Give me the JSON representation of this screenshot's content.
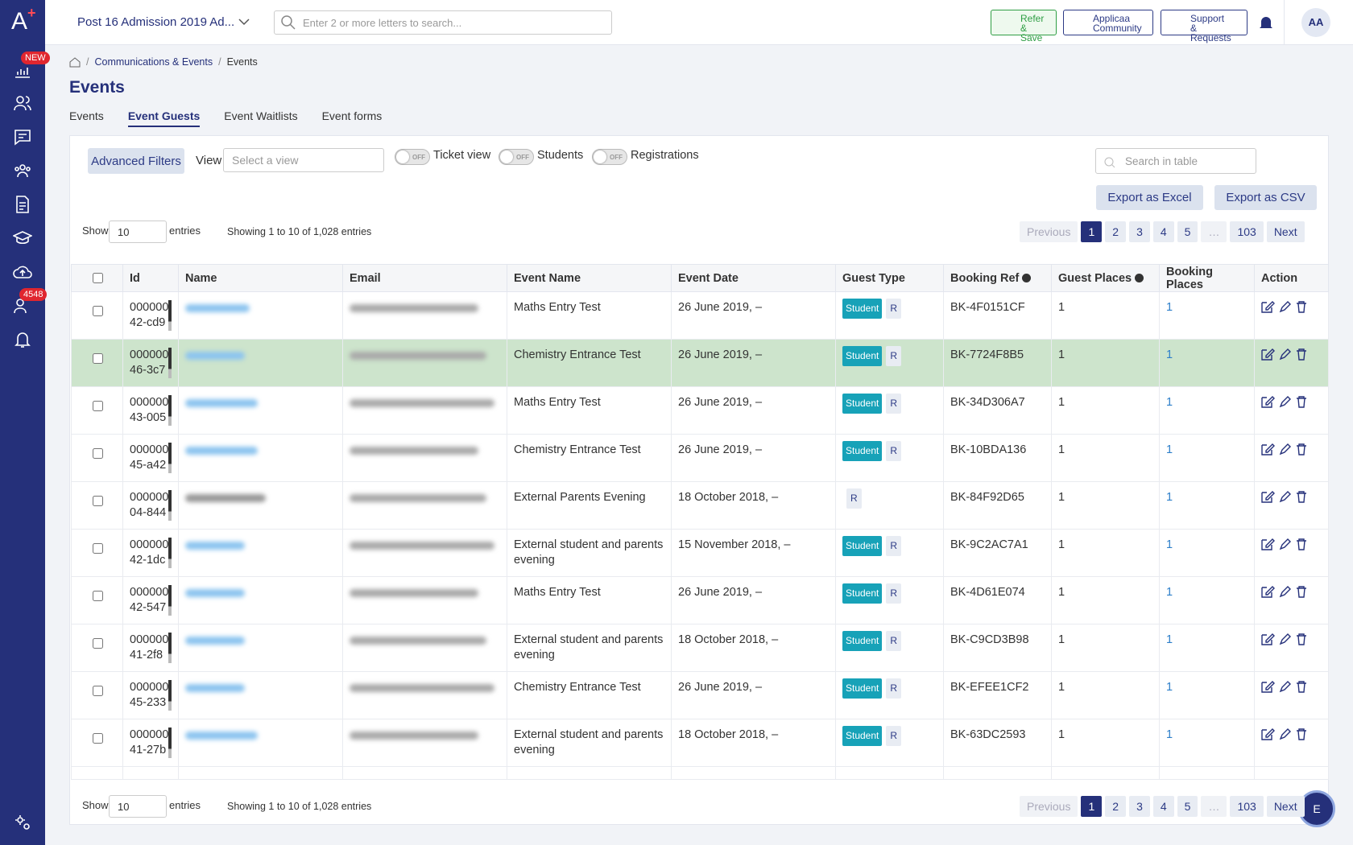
{
  "header": {
    "logo": "A",
    "project": "Post 16 Admission 2019 Ad...",
    "search_placeholder": "Enter 2 or more letters to search...",
    "buttons": [
      [
        "Refer",
        "& Save"
      ],
      [
        "Applicaa",
        "Community"
      ],
      [
        "Support",
        "& Requests"
      ]
    ],
    "avatar": "AA"
  },
  "sidebar": {
    "badges": [
      "NEW",
      "4548"
    ]
  },
  "breadcrumb": [
    "Communications & Events",
    "Events"
  ],
  "title": "Events",
  "tabs": [
    "Events",
    "Event Guests",
    "Event Waitlists",
    "Event forms"
  ],
  "toolbar": {
    "advanced_filters": "Advanced Filters",
    "view_label": "View",
    "view_placeholder": "Select a view",
    "toggles": [
      {
        "state": "OFF",
        "label": "Ticket view"
      },
      {
        "state": "OFF",
        "label": "Students"
      },
      {
        "state": "OFF",
        "label": "Registrations"
      }
    ],
    "search_placeholder": "Search in table",
    "exports": [
      "Export as Excel",
      "Export as CSV"
    ]
  },
  "paging": {
    "show": "Show",
    "length": 10,
    "entries": "entries",
    "info": "Showing 1 to 10 of 1,028 entries",
    "previous": "Previous",
    "pages": [
      "1",
      "2",
      "3",
      "4",
      "5",
      "…",
      "103"
    ],
    "next": "Next"
  },
  "table": {
    "columns": [
      "Id",
      "Name",
      "Email",
      "Event Name",
      "Event Date",
      "Guest Type",
      "Booking Ref",
      "Guest Places",
      "Booking Places",
      "Action"
    ],
    "rows": [
      {
        "id": [
          "000000",
          "42-cd9"
        ],
        "event": "Maths Entry Test",
        "date": "26 June 2019, –",
        "badges": [
          "Student",
          "R"
        ],
        "ref": "BK-4F0151CF",
        "guest_places": 1,
        "booking_places": 1
      },
      {
        "id": [
          "000000",
          "46-3c7"
        ],
        "event": "Chemistry Entrance Test",
        "date": "26 June 2019, –",
        "badges": [
          "Student",
          "R"
        ],
        "ref": "BK-7724F8B5",
        "guest_places": 1,
        "booking_places": 1
      },
      {
        "id": [
          "000000",
          "43-005"
        ],
        "event": "Maths Entry Test",
        "date": "26 June 2019, –",
        "badges": [
          "Student",
          "R"
        ],
        "ref": "BK-34D306A7",
        "guest_places": 1,
        "booking_places": 1
      },
      {
        "id": [
          "000000",
          "45-a42"
        ],
        "event": "Chemistry Entrance Test",
        "date": "26 June 2019, –",
        "badges": [
          "Student",
          "R"
        ],
        "ref": "BK-10BDA136",
        "guest_places": 1,
        "booking_places": 1
      },
      {
        "id": [
          "000000",
          "04-844"
        ],
        "event": "External Parents Evening",
        "date": "18 October 2018, –",
        "badges": [
          "R"
        ],
        "ref": "BK-84F92D65",
        "guest_places": 1,
        "booking_places": 1
      },
      {
        "id": [
          "000000",
          "42-1dc"
        ],
        "event": "External student and parents evening",
        "date": "15 November 2018, –",
        "badges": [
          "Student",
          "R"
        ],
        "ref": "BK-9C2AC7A1",
        "guest_places": 1,
        "booking_places": 1
      },
      {
        "id": [
          "000000",
          "42-547"
        ],
        "event": "Maths Entry Test",
        "date": "26 June 2019, –",
        "badges": [
          "Student",
          "R"
        ],
        "ref": "BK-4D61E074",
        "guest_places": 1,
        "booking_places": 1
      },
      {
        "id": [
          "000000",
          "41-2f8"
        ],
        "event": "External student and parents evening",
        "date": "18 October 2018, –",
        "badges": [
          "Student",
          "R"
        ],
        "ref": "BK-C9CD3B98",
        "guest_places": 1,
        "booking_places": 1
      },
      {
        "id": [
          "000000",
          "45-233"
        ],
        "event": "Chemistry Entrance Test",
        "date": "26 June 2019, –",
        "badges": [
          "Student",
          "R"
        ],
        "ref": "BK-EFEE1CF2",
        "guest_places": 1,
        "booking_places": 1
      },
      {
        "id": [
          "000000",
          "41-27b"
        ],
        "event": "External student and parents evening",
        "date": "18 October 2018, –",
        "badges": [
          "Student",
          "R"
        ],
        "ref": "BK-63DC2593",
        "guest_places": 1,
        "booking_places": 1
      }
    ]
  },
  "fab": "E"
}
